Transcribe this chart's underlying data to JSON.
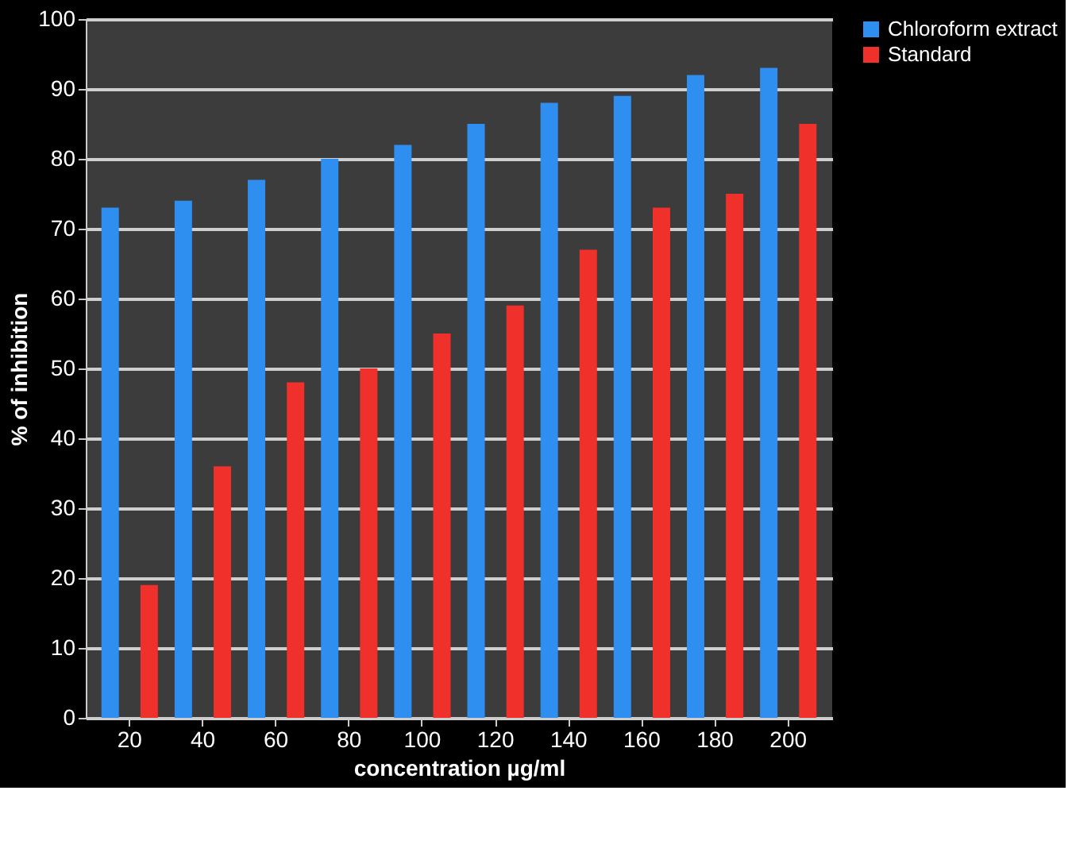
{
  "chart_data": {
    "type": "bar",
    "xlabel": "concentration µg/ml",
    "ylabel": "% of inhibition",
    "categories": [
      "20",
      "40",
      "60",
      "80",
      "100",
      "120",
      "140",
      "160",
      "180",
      "200"
    ],
    "series": [
      {
        "name": "Chloroform extract",
        "color": "#2e8ff0",
        "values": [
          73,
          74,
          77,
          80,
          82,
          85,
          88,
          89,
          92,
          93
        ]
      },
      {
        "name": "Standard",
        "color": "#f0302a",
        "values": [
          19,
          36,
          48,
          50,
          55,
          59,
          67,
          73,
          75,
          85
        ]
      }
    ],
    "ylim": [
      0,
      100
    ],
    "yticks": [
      0,
      10,
      20,
      30,
      40,
      50,
      60,
      70,
      80,
      90,
      100
    ],
    "grid": "y",
    "legend": "right"
  }
}
